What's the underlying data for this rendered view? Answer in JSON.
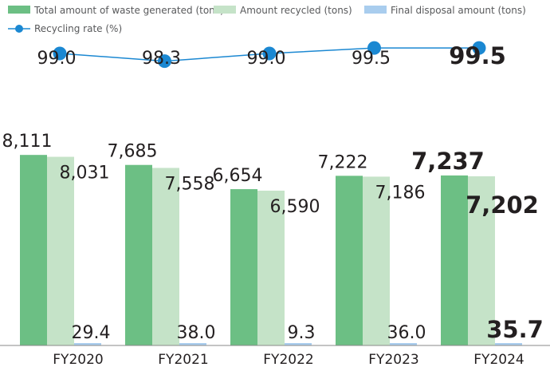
{
  "chart_data": {
    "type": "bar",
    "categories": [
      "FY2020",
      "FY2021",
      "FY2022",
      "FY2023",
      "FY2024"
    ],
    "highlight_category": "FY2024",
    "series": [
      {
        "name": "Total amount of waste generated (tons)",
        "kind": "bar",
        "color": "#6cbf84",
        "values": [
          8111,
          7685,
          6654,
          7222,
          7237
        ],
        "labels": [
          "8,111",
          "7,685",
          "6,654",
          "7,222",
          "7,237"
        ]
      },
      {
        "name": "Amount recycled (tons)",
        "kind": "bar",
        "color": "#c5e3c8",
        "values": [
          8031,
          7558,
          6590,
          7186,
          7202
        ],
        "labels": [
          "8,031",
          "7,558",
          "6,590",
          "7,186",
          "7,202"
        ]
      },
      {
        "name": "Final disposal amount (tons)",
        "kind": "bar",
        "color": "#a9cdee",
        "values": [
          29.4,
          38.0,
          9.3,
          36.0,
          35.7
        ],
        "labels": [
          "29.4",
          "38.0",
          "9.3",
          "36.0",
          "35.7"
        ]
      },
      {
        "name": "Recycling rate (%)",
        "kind": "line",
        "color": "#1b88d2",
        "values": [
          99.0,
          98.3,
          99.0,
          99.5,
          99.5
        ],
        "labels": [
          "99.0",
          "98.3",
          "99.0",
          "99.5",
          "99.5"
        ]
      }
    ],
    "bar_axis": {
      "ylim": [
        0,
        9000
      ]
    },
    "line_axis": {
      "ylim": [
        95,
        103
      ]
    },
    "legend_position": "top-left",
    "title": "",
    "xlabel": "",
    "ylabel": ""
  }
}
